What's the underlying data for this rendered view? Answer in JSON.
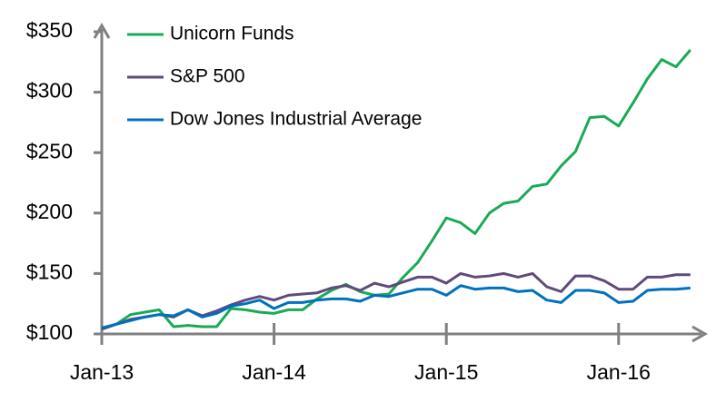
{
  "chart_data": {
    "type": "line",
    "categories": [
      "Jan-13",
      null,
      null,
      null,
      null,
      null,
      null,
      null,
      null,
      null,
      null,
      null,
      "Jan-14",
      null,
      null,
      null,
      null,
      null,
      null,
      null,
      null,
      null,
      null,
      null,
      "Jan-15",
      null,
      null,
      null,
      null,
      null,
      null,
      null,
      null,
      null,
      null,
      null,
      "Jan-16",
      null,
      null,
      null,
      null,
      null
    ],
    "series": [
      {
        "name": "Unicorn Funds",
        "color": "#1aaa55",
        "values": [
          104,
          108,
          116,
          118,
          120,
          106,
          107,
          106,
          106,
          121,
          120,
          118,
          117,
          120,
          120,
          129,
          136,
          141,
          135,
          132,
          133,
          147,
          159,
          177,
          196,
          192,
          183,
          200,
          208,
          210,
          222,
          224,
          239,
          251,
          279,
          280,
          272,
          291,
          311,
          327,
          321,
          335
        ]
      },
      {
        "name": "S&P 500",
        "color": "#604a7b",
        "values": [
          104,
          108,
          112,
          114,
          116,
          114,
          120,
          115,
          119,
          124,
          128,
          131,
          128,
          132,
          133,
          134,
          138,
          140,
          136,
          142,
          139,
          143,
          147,
          147,
          142,
          150,
          147,
          148,
          150,
          147,
          150,
          139,
          135,
          148,
          148,
          144,
          137,
          137,
          147,
          147,
          149,
          149
        ]
      },
      {
        "name": "Dow Jones Industrial Average",
        "color": "#0070c0",
        "values": [
          105,
          108,
          111,
          114,
          116,
          115,
          120,
          114,
          117,
          123,
          125,
          128,
          121,
          126,
          126,
          128,
          129,
          129,
          127,
          132,
          131,
          134,
          137,
          137,
          132,
          140,
          137,
          138,
          138,
          135,
          136,
          128,
          126,
          136,
          136,
          134,
          126,
          127,
          136,
          137,
          137,
          138
        ]
      }
    ],
    "ylim": [
      100,
      350
    ],
    "yticks": [
      {
        "value": 100,
        "label": "$100"
      },
      {
        "value": 150,
        "label": "$150"
      },
      {
        "value": 200,
        "label": "$200"
      },
      {
        "value": 250,
        "label": "$250"
      },
      {
        "value": 300,
        "label": "$300"
      },
      {
        "value": 350,
        "label": "$350"
      }
    ],
    "legend": "top-left"
  }
}
